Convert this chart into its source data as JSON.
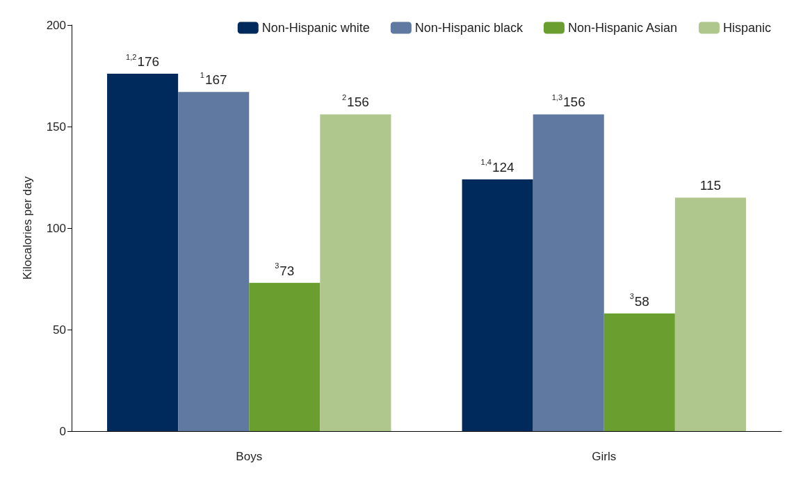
{
  "chart_data": {
    "type": "bar",
    "ylabel": "Kilocalories per day",
    "categories": [
      "Boys",
      "Girls"
    ],
    "series": [
      {
        "name": "Non-Hispanic white",
        "color": "#002a5c",
        "values": [
          176,
          124
        ],
        "value_labels": [
          "$^{1,2}$176",
          "$^{1,4}$124"
        ]
      },
      {
        "name": "Non-Hispanic black",
        "color": "#5f79a1",
        "values": [
          167,
          156
        ],
        "value_labels": [
          "$^{1}$167",
          "$^{1,3}$156"
        ]
      },
      {
        "name": "Non-Hispanic Asian",
        "color": "#6a9f2f",
        "values": [
          73,
          58
        ],
        "value_labels": [
          "$^{3}$73",
          "$^{3}$58"
        ]
      },
      {
        "name": "Hispanic",
        "color": "#afc78c",
        "values": [
          156,
          115
        ],
        "value_labels": [
          "$^{2}$156",
          "115"
        ]
      }
    ],
    "ylim": [
      0,
      200
    ],
    "yticks": [
      0,
      50,
      100,
      150,
      200
    ],
    "grid": false,
    "legend": "top right"
  }
}
